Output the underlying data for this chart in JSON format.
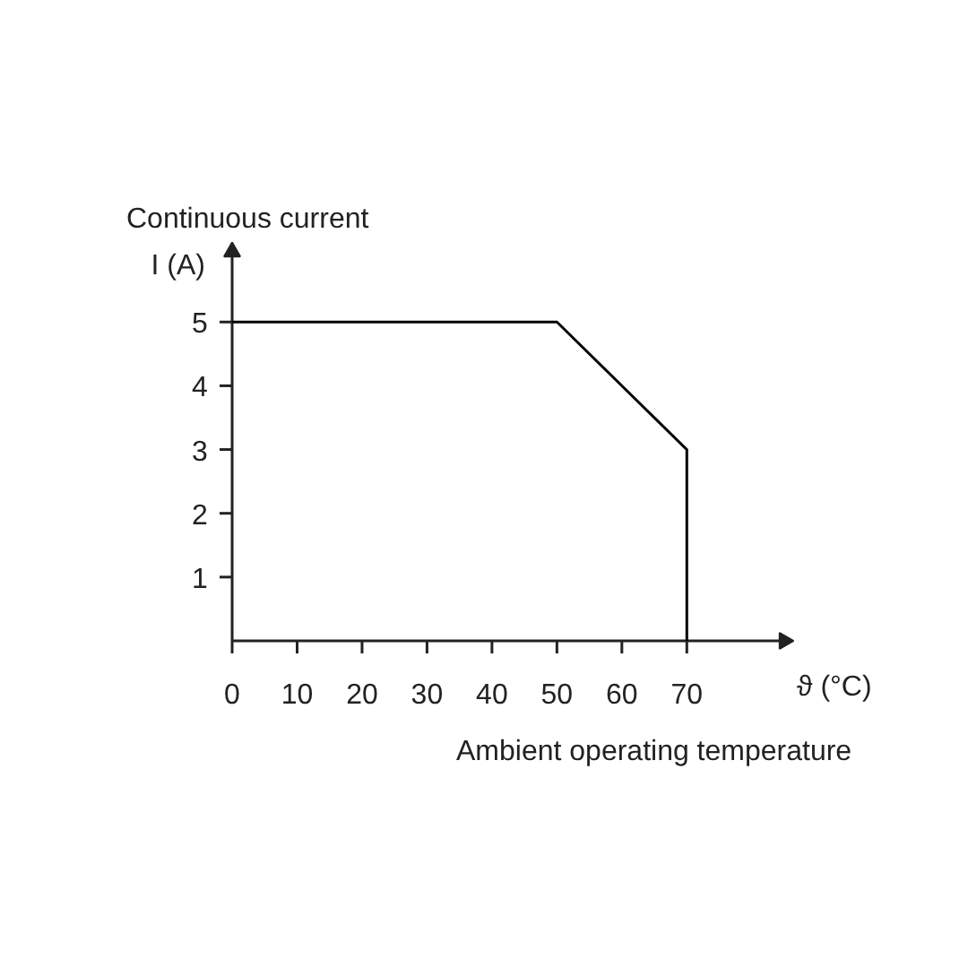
{
  "chart_data": {
    "type": "line",
    "xlabel": "ϑ (°C)\nAmbient operating temperature",
    "ylabel": "Continuous current\nI (A)",
    "x": [
      0,
      50,
      70,
      70
    ],
    "series": [
      {
        "color": "#000000",
        "values": [
          5,
          5,
          3,
          0
        ]
      }
    ],
    "xlim": [
      0,
      85
    ],
    "ylim": [
      0,
      6.1
    ],
    "xticks": [
      0,
      10,
      20,
      30,
      40,
      50,
      60,
      70
    ],
    "yticks": [
      1,
      2,
      3,
      4,
      5
    ],
    "grid": false,
    "marker": "none",
    "line_style": "solid"
  }
}
